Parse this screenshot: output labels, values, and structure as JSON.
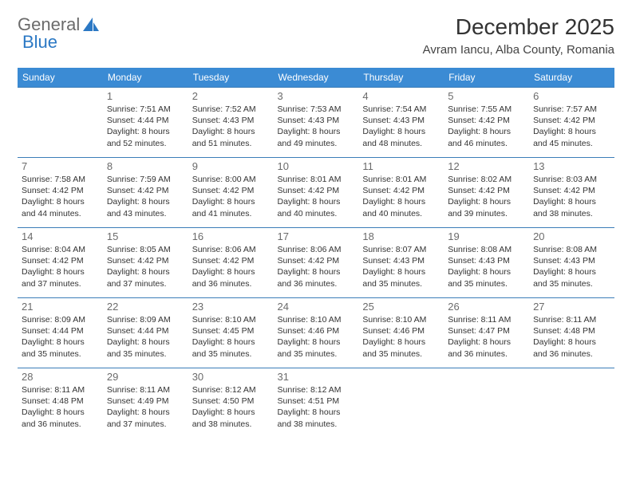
{
  "logo": {
    "text1": "General",
    "text2": "Blue"
  },
  "title": "December 2025",
  "location": "Avram Iancu, Alba County, Romania",
  "colors": {
    "header_bg": "#3b8bd4",
    "header_text": "#ffffff",
    "border": "#3b7db8",
    "daynum": "#6b6b6b",
    "detail": "#333333",
    "logo_gray": "#6b6b6b",
    "logo_blue": "#2b78c4",
    "background": "#ffffff"
  },
  "typography": {
    "title_fontsize": 28,
    "location_fontsize": 15,
    "weekday_fontsize": 12,
    "daynum_fontsize": 13,
    "detail_fontsize": 10.5
  },
  "weekdays": [
    "Sunday",
    "Monday",
    "Tuesday",
    "Wednesday",
    "Thursday",
    "Friday",
    "Saturday"
  ],
  "weeks": [
    [
      null,
      {
        "n": "1",
        "sr": "7:51 AM",
        "ss": "4:44 PM",
        "dl": "8 hours and 52 minutes."
      },
      {
        "n": "2",
        "sr": "7:52 AM",
        "ss": "4:43 PM",
        "dl": "8 hours and 51 minutes."
      },
      {
        "n": "3",
        "sr": "7:53 AM",
        "ss": "4:43 PM",
        "dl": "8 hours and 49 minutes."
      },
      {
        "n": "4",
        "sr": "7:54 AM",
        "ss": "4:43 PM",
        "dl": "8 hours and 48 minutes."
      },
      {
        "n": "5",
        "sr": "7:55 AM",
        "ss": "4:42 PM",
        "dl": "8 hours and 46 minutes."
      },
      {
        "n": "6",
        "sr": "7:57 AM",
        "ss": "4:42 PM",
        "dl": "8 hours and 45 minutes."
      }
    ],
    [
      {
        "n": "7",
        "sr": "7:58 AM",
        "ss": "4:42 PM",
        "dl": "8 hours and 44 minutes."
      },
      {
        "n": "8",
        "sr": "7:59 AM",
        "ss": "4:42 PM",
        "dl": "8 hours and 43 minutes."
      },
      {
        "n": "9",
        "sr": "8:00 AM",
        "ss": "4:42 PM",
        "dl": "8 hours and 41 minutes."
      },
      {
        "n": "10",
        "sr": "8:01 AM",
        "ss": "4:42 PM",
        "dl": "8 hours and 40 minutes."
      },
      {
        "n": "11",
        "sr": "8:01 AM",
        "ss": "4:42 PM",
        "dl": "8 hours and 40 minutes."
      },
      {
        "n": "12",
        "sr": "8:02 AM",
        "ss": "4:42 PM",
        "dl": "8 hours and 39 minutes."
      },
      {
        "n": "13",
        "sr": "8:03 AM",
        "ss": "4:42 PM",
        "dl": "8 hours and 38 minutes."
      }
    ],
    [
      {
        "n": "14",
        "sr": "8:04 AM",
        "ss": "4:42 PM",
        "dl": "8 hours and 37 minutes."
      },
      {
        "n": "15",
        "sr": "8:05 AM",
        "ss": "4:42 PM",
        "dl": "8 hours and 37 minutes."
      },
      {
        "n": "16",
        "sr": "8:06 AM",
        "ss": "4:42 PM",
        "dl": "8 hours and 36 minutes."
      },
      {
        "n": "17",
        "sr": "8:06 AM",
        "ss": "4:42 PM",
        "dl": "8 hours and 36 minutes."
      },
      {
        "n": "18",
        "sr": "8:07 AM",
        "ss": "4:43 PM",
        "dl": "8 hours and 35 minutes."
      },
      {
        "n": "19",
        "sr": "8:08 AM",
        "ss": "4:43 PM",
        "dl": "8 hours and 35 minutes."
      },
      {
        "n": "20",
        "sr": "8:08 AM",
        "ss": "4:43 PM",
        "dl": "8 hours and 35 minutes."
      }
    ],
    [
      {
        "n": "21",
        "sr": "8:09 AM",
        "ss": "4:44 PM",
        "dl": "8 hours and 35 minutes."
      },
      {
        "n": "22",
        "sr": "8:09 AM",
        "ss": "4:44 PM",
        "dl": "8 hours and 35 minutes."
      },
      {
        "n": "23",
        "sr": "8:10 AM",
        "ss": "4:45 PM",
        "dl": "8 hours and 35 minutes."
      },
      {
        "n": "24",
        "sr": "8:10 AM",
        "ss": "4:46 PM",
        "dl": "8 hours and 35 minutes."
      },
      {
        "n": "25",
        "sr": "8:10 AM",
        "ss": "4:46 PM",
        "dl": "8 hours and 35 minutes."
      },
      {
        "n": "26",
        "sr": "8:11 AM",
        "ss": "4:47 PM",
        "dl": "8 hours and 36 minutes."
      },
      {
        "n": "27",
        "sr": "8:11 AM",
        "ss": "4:48 PM",
        "dl": "8 hours and 36 minutes."
      }
    ],
    [
      {
        "n": "28",
        "sr": "8:11 AM",
        "ss": "4:48 PM",
        "dl": "8 hours and 36 minutes."
      },
      {
        "n": "29",
        "sr": "8:11 AM",
        "ss": "4:49 PM",
        "dl": "8 hours and 37 minutes."
      },
      {
        "n": "30",
        "sr": "8:12 AM",
        "ss": "4:50 PM",
        "dl": "8 hours and 38 minutes."
      },
      {
        "n": "31",
        "sr": "8:12 AM",
        "ss": "4:51 PM",
        "dl": "8 hours and 38 minutes."
      },
      null,
      null,
      null
    ]
  ],
  "labels": {
    "sunrise": "Sunrise:",
    "sunset": "Sunset:",
    "daylight": "Daylight:"
  }
}
